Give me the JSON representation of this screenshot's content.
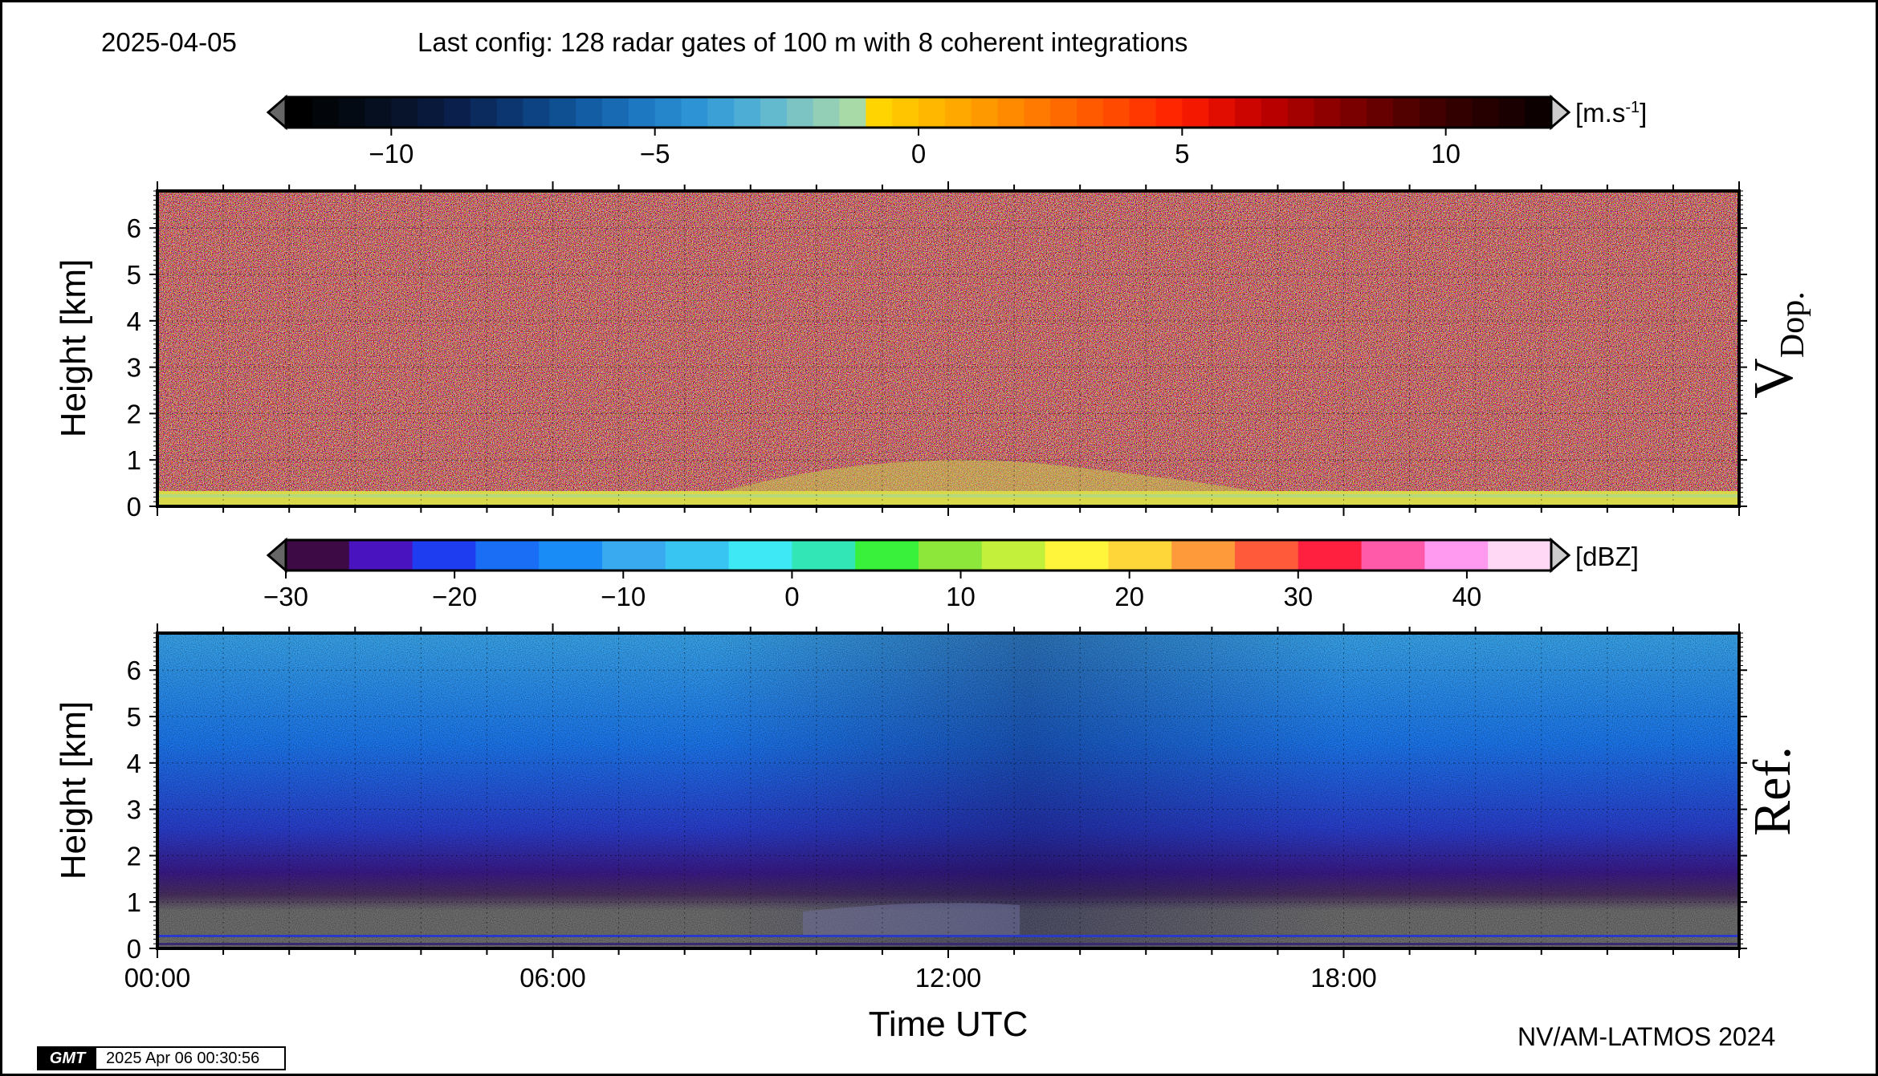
{
  "header": {
    "date": "2025-04-05",
    "config": "Last config: 128 radar gates of 100 m with 8 coherent integrations"
  },
  "footer": {
    "credit": "NV/AM-LATMOS 2024",
    "gmt_logo": "GMT",
    "timestamp": "2025 Apr 06 00:30:56"
  },
  "chart_data": [
    {
      "type": "heatmap",
      "title": "V Dop.",
      "side_label_main": "V",
      "side_label_sub": "Dop.",
      "ylabel": "Height [km]",
      "xlabel": "",
      "x_unit": "hours UTC",
      "xlim": [
        0,
        24
      ],
      "ylim": [
        0,
        6.8
      ],
      "y_ticks": [
        0,
        1,
        2,
        3,
        4,
        5,
        6
      ],
      "grid": true,
      "colorbar": {
        "unit": "[m.s-1]",
        "unit_base": "[m.s",
        "unit_exp": "-1",
        "unit_end": "]",
        "range": [
          -12,
          12
        ],
        "ticks": [
          -10,
          -5,
          0,
          5,
          10
        ],
        "tick_labels": [
          "−10",
          "−5",
          "0",
          "5",
          "10"
        ],
        "extend": "both",
        "colors": [
          "#000000",
          "#020509",
          "#040a14",
          "#050f20",
          "#07142c",
          "#08193b",
          "#0a1f4c",
          "#0b2a5e",
          "#0c3670",
          "#0d4382",
          "#0f5093",
          "#125da3",
          "#186ab3",
          "#1e78c1",
          "#2586cc",
          "#2d93d4",
          "#3aa0d6",
          "#4dadd4",
          "#63b9cd",
          "#7cc4c3",
          "#93cfb6",
          "#a8daa8",
          "#ffd400",
          "#ffc600",
          "#ffb700",
          "#ffa800",
          "#ff9900",
          "#ff8a00",
          "#ff7a00",
          "#ff6a00",
          "#ff5a00",
          "#ff4a00",
          "#ff3800",
          "#ff2600",
          "#f51800",
          "#e10d00",
          "#cc0500",
          "#b80000",
          "#a30000",
          "#8e0000",
          "#7a0000",
          "#660000",
          "#530000",
          "#420000",
          "#330000",
          "#260000",
          "#1a0000",
          "#0d0000"
        ],
        "extend_colors": [
          "#666666",
          "#cccccc"
        ]
      }
    },
    {
      "type": "heatmap",
      "title": "Ref.",
      "side_label_main": "Ref.",
      "ylabel": "Height [km]",
      "xlabel": "Time UTC",
      "xlim": [
        0,
        24
      ],
      "x_ticks": [
        "00:00",
        "06:00",
        "12:00",
        "18:00"
      ],
      "x_tick_hours": [
        0,
        6,
        12,
        18
      ],
      "ylim": [
        0,
        6.8
      ],
      "y_ticks": [
        0,
        1,
        2,
        3,
        4,
        5,
        6
      ],
      "grid": true,
      "colorbar": {
        "unit": "[dBZ]",
        "range": [
          -30,
          45
        ],
        "ticks": [
          -30,
          -20,
          -10,
          0,
          10,
          20,
          30,
          40
        ],
        "tick_labels": [
          "−30",
          "−20",
          "−10",
          "0",
          "10",
          "20",
          "30",
          "40"
        ],
        "extend": "both",
        "colors": [
          "#3d0a45",
          "#4a13c0",
          "#1e3cf0",
          "#1a6ef5",
          "#1a8cf5",
          "#3aaaf0",
          "#39c5f2",
          "#3ee8f5",
          "#33e6b6",
          "#39f03a",
          "#8de63a",
          "#c3f03a",
          "#fff53a",
          "#ffd63a",
          "#ff9a3a",
          "#ff5a3a",
          "#ff2040",
          "#ff5aaa",
          "#ff9af0",
          "#ffd8f5"
        ],
        "extend_colors": [
          "#666666",
          "#cccccc"
        ]
      }
    }
  ]
}
